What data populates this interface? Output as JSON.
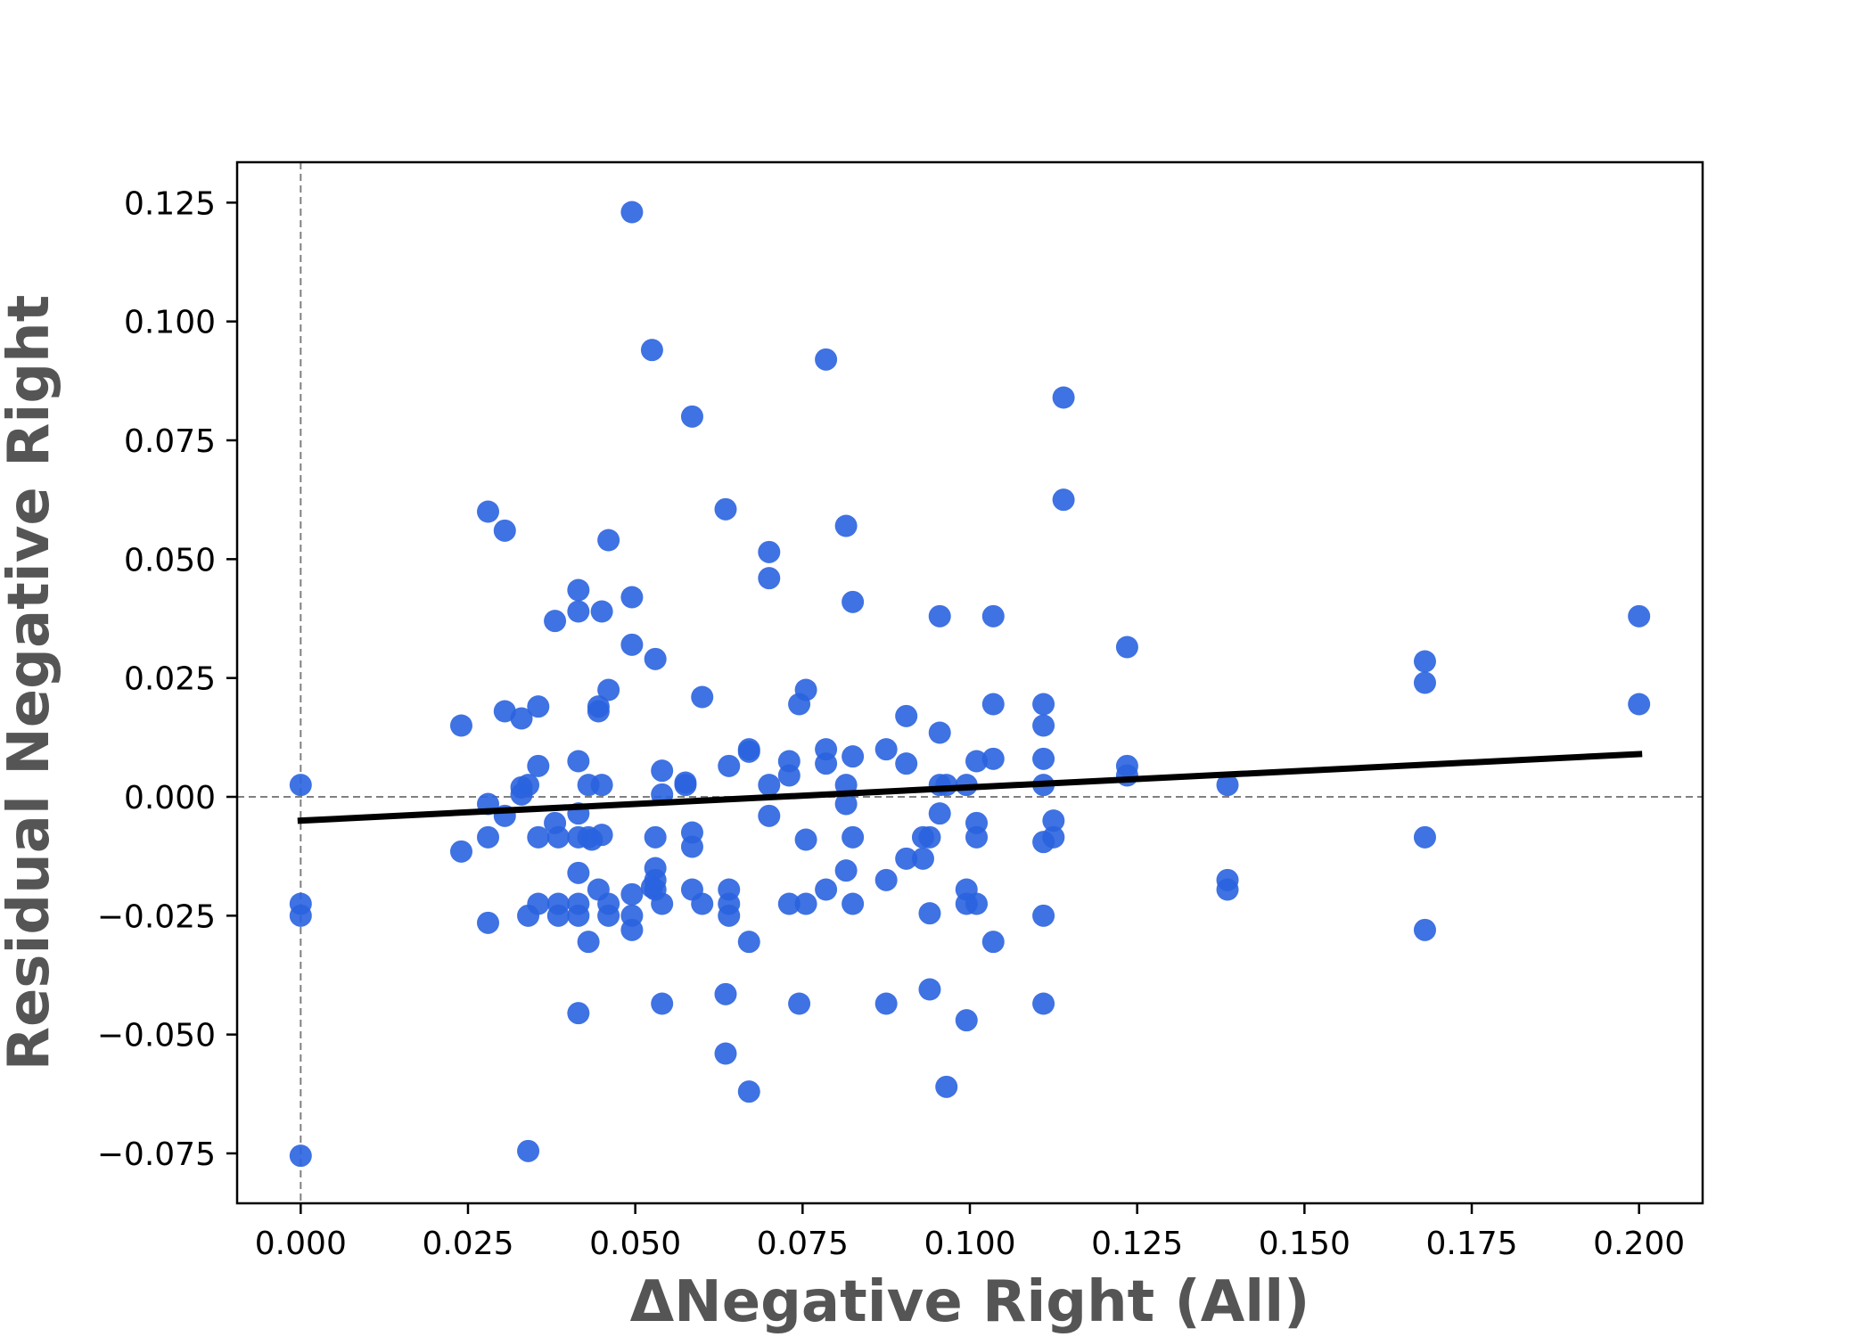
{
  "chart_data": {
    "type": "scatter",
    "title": "",
    "xlabel": "ΔNegative Right (All)",
    "ylabel": "Residual Negative Right",
    "xlim": [
      -0.0095,
      0.2095
    ],
    "ylim": [
      -0.0855,
      0.1335
    ],
    "xticks": [
      0.0,
      0.025,
      0.05,
      0.075,
      0.1,
      0.125,
      0.15,
      0.175,
      0.2
    ],
    "xtick_labels": [
      "0.000",
      "0.025",
      "0.050",
      "0.075",
      "0.100",
      "0.125",
      "0.150",
      "0.175",
      "0.200"
    ],
    "yticks": [
      -0.075,
      -0.05,
      -0.025,
      0.0,
      0.025,
      0.05,
      0.075,
      0.1,
      0.125
    ],
    "ytick_labels": [
      "−0.075",
      "−0.050",
      "−0.025",
      "0.000",
      "0.025",
      "0.050",
      "0.075",
      "0.100",
      "0.125"
    ],
    "reference_lines": {
      "x": 0.0,
      "y": 0.0,
      "style": "dashed",
      "color": "#808080"
    },
    "grid": false,
    "colors": {
      "points": "#2a63df",
      "fit_line": "#000000"
    },
    "fit_line": {
      "x": [
        0.0,
        0.2
      ],
      "y": [
        -0.005,
        0.009
      ]
    },
    "points": [
      [
        0.0,
        0.0025
      ],
      [
        0.0,
        -0.0225
      ],
      [
        0.0,
        -0.025
      ],
      [
        0.0,
        -0.0755
      ],
      [
        0.024,
        0.015
      ],
      [
        0.024,
        -0.0115
      ],
      [
        0.028,
        0.06
      ],
      [
        0.028,
        -0.0015
      ],
      [
        0.028,
        -0.0085
      ],
      [
        0.028,
        -0.0265
      ],
      [
        0.0305,
        0.056
      ],
      [
        0.0305,
        0.018
      ],
      [
        0.0305,
        -0.004
      ],
      [
        0.033,
        0.0165
      ],
      [
        0.033,
        0.002
      ],
      [
        0.033,
        0.0005
      ],
      [
        0.034,
        0.0025
      ],
      [
        0.034,
        -0.025
      ],
      [
        0.034,
        -0.0745
      ],
      [
        0.0355,
        0.019
      ],
      [
        0.0355,
        0.0065
      ],
      [
        0.0355,
        -0.0085
      ],
      [
        0.0355,
        -0.0225
      ],
      [
        0.038,
        0.037
      ],
      [
        0.038,
        -0.0055
      ],
      [
        0.0385,
        -0.0085
      ],
      [
        0.0385,
        -0.0225
      ],
      [
        0.0385,
        -0.025
      ],
      [
        0.0415,
        0.0435
      ],
      [
        0.0415,
        0.039
      ],
      [
        0.0415,
        0.0075
      ],
      [
        0.0415,
        -0.0035
      ],
      [
        0.0415,
        -0.0085
      ],
      [
        0.0415,
        -0.016
      ],
      [
        0.0415,
        -0.0225
      ],
      [
        0.0415,
        -0.025
      ],
      [
        0.0415,
        -0.0455
      ],
      [
        0.043,
        0.0025
      ],
      [
        0.043,
        -0.0085
      ],
      [
        0.043,
        -0.0305
      ],
      [
        0.0435,
        -0.009
      ],
      [
        0.0445,
        0.019
      ],
      [
        0.0445,
        0.018
      ],
      [
        0.0445,
        -0.0195
      ],
      [
        0.045,
        0.039
      ],
      [
        0.045,
        0.0025
      ],
      [
        0.045,
        -0.008
      ],
      [
        0.046,
        0.054
      ],
      [
        0.046,
        0.0225
      ],
      [
        0.046,
        -0.0225
      ],
      [
        0.046,
        -0.025
      ],
      [
        0.0495,
        0.123
      ],
      [
        0.0495,
        0.042
      ],
      [
        0.0495,
        0.032
      ],
      [
        0.0495,
        -0.0205
      ],
      [
        0.0495,
        -0.025
      ],
      [
        0.0495,
        -0.028
      ],
      [
        0.0525,
        0.094
      ],
      [
        0.0525,
        -0.019
      ],
      [
        0.053,
        0.029
      ],
      [
        0.053,
        -0.0085
      ],
      [
        0.053,
        -0.015
      ],
      [
        0.053,
        -0.0175
      ],
      [
        0.053,
        -0.0195
      ],
      [
        0.054,
        0.0055
      ],
      [
        0.054,
        0.0005
      ],
      [
        0.054,
        -0.0225
      ],
      [
        0.054,
        -0.0435
      ],
      [
        0.0575,
        0.003
      ],
      [
        0.0575,
        0.0025
      ],
      [
        0.0585,
        0.08
      ],
      [
        0.0585,
        -0.0075
      ],
      [
        0.0585,
        -0.0105
      ],
      [
        0.0585,
        -0.0195
      ],
      [
        0.06,
        0.021
      ],
      [
        0.06,
        -0.0225
      ],
      [
        0.0635,
        0.0605
      ],
      [
        0.0635,
        -0.0415
      ],
      [
        0.0635,
        -0.054
      ],
      [
        0.064,
        0.0065
      ],
      [
        0.064,
        -0.0195
      ],
      [
        0.064,
        -0.0225
      ],
      [
        0.064,
        -0.025
      ],
      [
        0.067,
        0.01
      ],
      [
        0.067,
        0.0095
      ],
      [
        0.067,
        -0.0305
      ],
      [
        0.067,
        -0.062
      ],
      [
        0.07,
        0.0515
      ],
      [
        0.07,
        0.046
      ],
      [
        0.07,
        0.0025
      ],
      [
        0.07,
        -0.004
      ],
      [
        0.073,
        0.0075
      ],
      [
        0.073,
        0.0045
      ],
      [
        0.073,
        -0.0225
      ],
      [
        0.0745,
        0.0195
      ],
      [
        0.0745,
        -0.0435
      ],
      [
        0.0755,
        0.0225
      ],
      [
        0.0755,
        -0.009
      ],
      [
        0.0755,
        -0.0225
      ],
      [
        0.0785,
        0.092
      ],
      [
        0.0785,
        0.01
      ],
      [
        0.0785,
        0.007
      ],
      [
        0.0785,
        -0.0195
      ],
      [
        0.0815,
        0.057
      ],
      [
        0.0815,
        0.0025
      ],
      [
        0.0815,
        -0.0015
      ],
      [
        0.0815,
        -0.0155
      ],
      [
        0.0825,
        0.041
      ],
      [
        0.0825,
        0.0085
      ],
      [
        0.0825,
        -0.0085
      ],
      [
        0.0825,
        -0.0225
      ],
      [
        0.0875,
        0.01
      ],
      [
        0.0875,
        -0.0175
      ],
      [
        0.0875,
        -0.0435
      ],
      [
        0.0905,
        0.017
      ],
      [
        0.0905,
        0.007
      ],
      [
        0.0905,
        -0.013
      ],
      [
        0.093,
        -0.0085
      ],
      [
        0.093,
        -0.013
      ],
      [
        0.094,
        -0.0085
      ],
      [
        0.094,
        -0.0245
      ],
      [
        0.094,
        -0.0405
      ],
      [
        0.0955,
        0.038
      ],
      [
        0.0955,
        0.0135
      ],
      [
        0.0955,
        0.0025
      ],
      [
        0.0955,
        -0.0035
      ],
      [
        0.0965,
        0.0025
      ],
      [
        0.0965,
        -0.061
      ],
      [
        0.0995,
        0.0025
      ],
      [
        0.0995,
        -0.0195
      ],
      [
        0.0995,
        -0.0225
      ],
      [
        0.0995,
        -0.047
      ],
      [
        0.101,
        0.0075
      ],
      [
        0.101,
        -0.0055
      ],
      [
        0.101,
        -0.0085
      ],
      [
        0.101,
        -0.0225
      ],
      [
        0.1035,
        0.038
      ],
      [
        0.1035,
        0.0195
      ],
      [
        0.1035,
        0.008
      ],
      [
        0.1035,
        -0.0305
      ],
      [
        0.111,
        0.0195
      ],
      [
        0.111,
        0.015
      ],
      [
        0.111,
        0.008
      ],
      [
        0.111,
        0.0025
      ],
      [
        0.111,
        -0.0095
      ],
      [
        0.111,
        -0.025
      ],
      [
        0.111,
        -0.0435
      ],
      [
        0.1125,
        -0.005
      ],
      [
        0.1125,
        -0.0085
      ],
      [
        0.114,
        0.084
      ],
      [
        0.114,
        0.0625
      ],
      [
        0.1235,
        0.0315
      ],
      [
        0.1235,
        0.0065
      ],
      [
        0.1235,
        0.0045
      ],
      [
        0.1385,
        0.0025
      ],
      [
        0.1385,
        -0.0175
      ],
      [
        0.1385,
        -0.0195
      ],
      [
        0.168,
        0.0285
      ],
      [
        0.168,
        0.024
      ],
      [
        0.168,
        -0.0085
      ],
      [
        0.168,
        -0.028
      ],
      [
        0.2,
        0.038
      ],
      [
        0.2,
        0.0195
      ]
    ]
  }
}
